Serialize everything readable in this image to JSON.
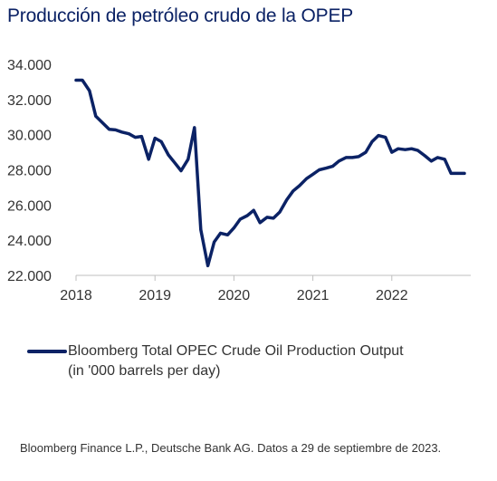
{
  "title": "Producción de petróleo crudo de la OPEP",
  "legend": {
    "line1": "Bloomberg Total OPEC Crude Oil Production Output",
    "line2": "(in '000 barrels per day)"
  },
  "source": "Bloomberg Finance L.P., Deutsche Bank AG. Datos a 29 de septiembre de 2023.",
  "colors": {
    "series": "#0b2265",
    "text": "#333333"
  },
  "chart_data": {
    "type": "line",
    "title": "Producción de petróleo crudo de la OPEP",
    "xlabel": "",
    "ylabel": "",
    "ylim": [
      22000,
      34000
    ],
    "xlim": [
      2018.0,
      2023.0
    ],
    "y_ticks": [
      "22.000",
      "24.000",
      "26.000",
      "28.000",
      "30.000",
      "32.000",
      "34.000"
    ],
    "x_ticks": [
      "2018",
      "2019",
      "2020",
      "2021",
      "2022"
    ],
    "grid": false,
    "legend_position": "bottom",
    "series": [
      {
        "name": "Bloomberg Total OPEC Crude Oil Production Output",
        "x": [
          2018.0,
          2018.08,
          2018.17,
          2018.25,
          2018.33,
          2018.42,
          2018.5,
          2018.58,
          2018.67,
          2018.75,
          2018.83,
          2018.92,
          2019.0,
          2019.08,
          2019.17,
          2019.25,
          2019.33,
          2019.42,
          2019.5,
          2019.58,
          2019.67,
          2019.75,
          2019.83,
          2019.92,
          2020.0,
          2020.08,
          2020.17,
          2020.25,
          2020.33,
          2020.42,
          2020.5,
          2020.58,
          2020.67,
          2020.75,
          2020.83,
          2020.92,
          2021.0,
          2021.08,
          2021.17,
          2021.25,
          2021.33,
          2021.42,
          2021.5,
          2021.58,
          2021.67,
          2021.75,
          2021.83,
          2021.92,
          2022.0,
          2022.08,
          2022.17,
          2022.25,
          2022.33,
          2022.42,
          2022.5,
          2022.58,
          2022.67,
          2022.75,
          2022.83,
          2022.92
        ],
        "y": [
          33100,
          33100,
          32500,
          31050,
          30700,
          30300,
          30270,
          30150,
          30050,
          29850,
          29900,
          28600,
          29800,
          29600,
          28850,
          28400,
          27950,
          28600,
          30400,
          24600,
          22550,
          23900,
          24400,
          24300,
          24700,
          25200,
          25400,
          25700,
          25000,
          25300,
          25250,
          25600,
          26300,
          26800,
          27100,
          27500,
          27750,
          28000,
          28100,
          28200,
          28500,
          28700,
          28700,
          28750,
          29000,
          29600,
          29950,
          29850,
          29000,
          29200,
          29150,
          29200,
          29100,
          28800,
          28500,
          28700,
          28600,
          27800,
          27800,
          27800
        ]
      }
    ]
  }
}
